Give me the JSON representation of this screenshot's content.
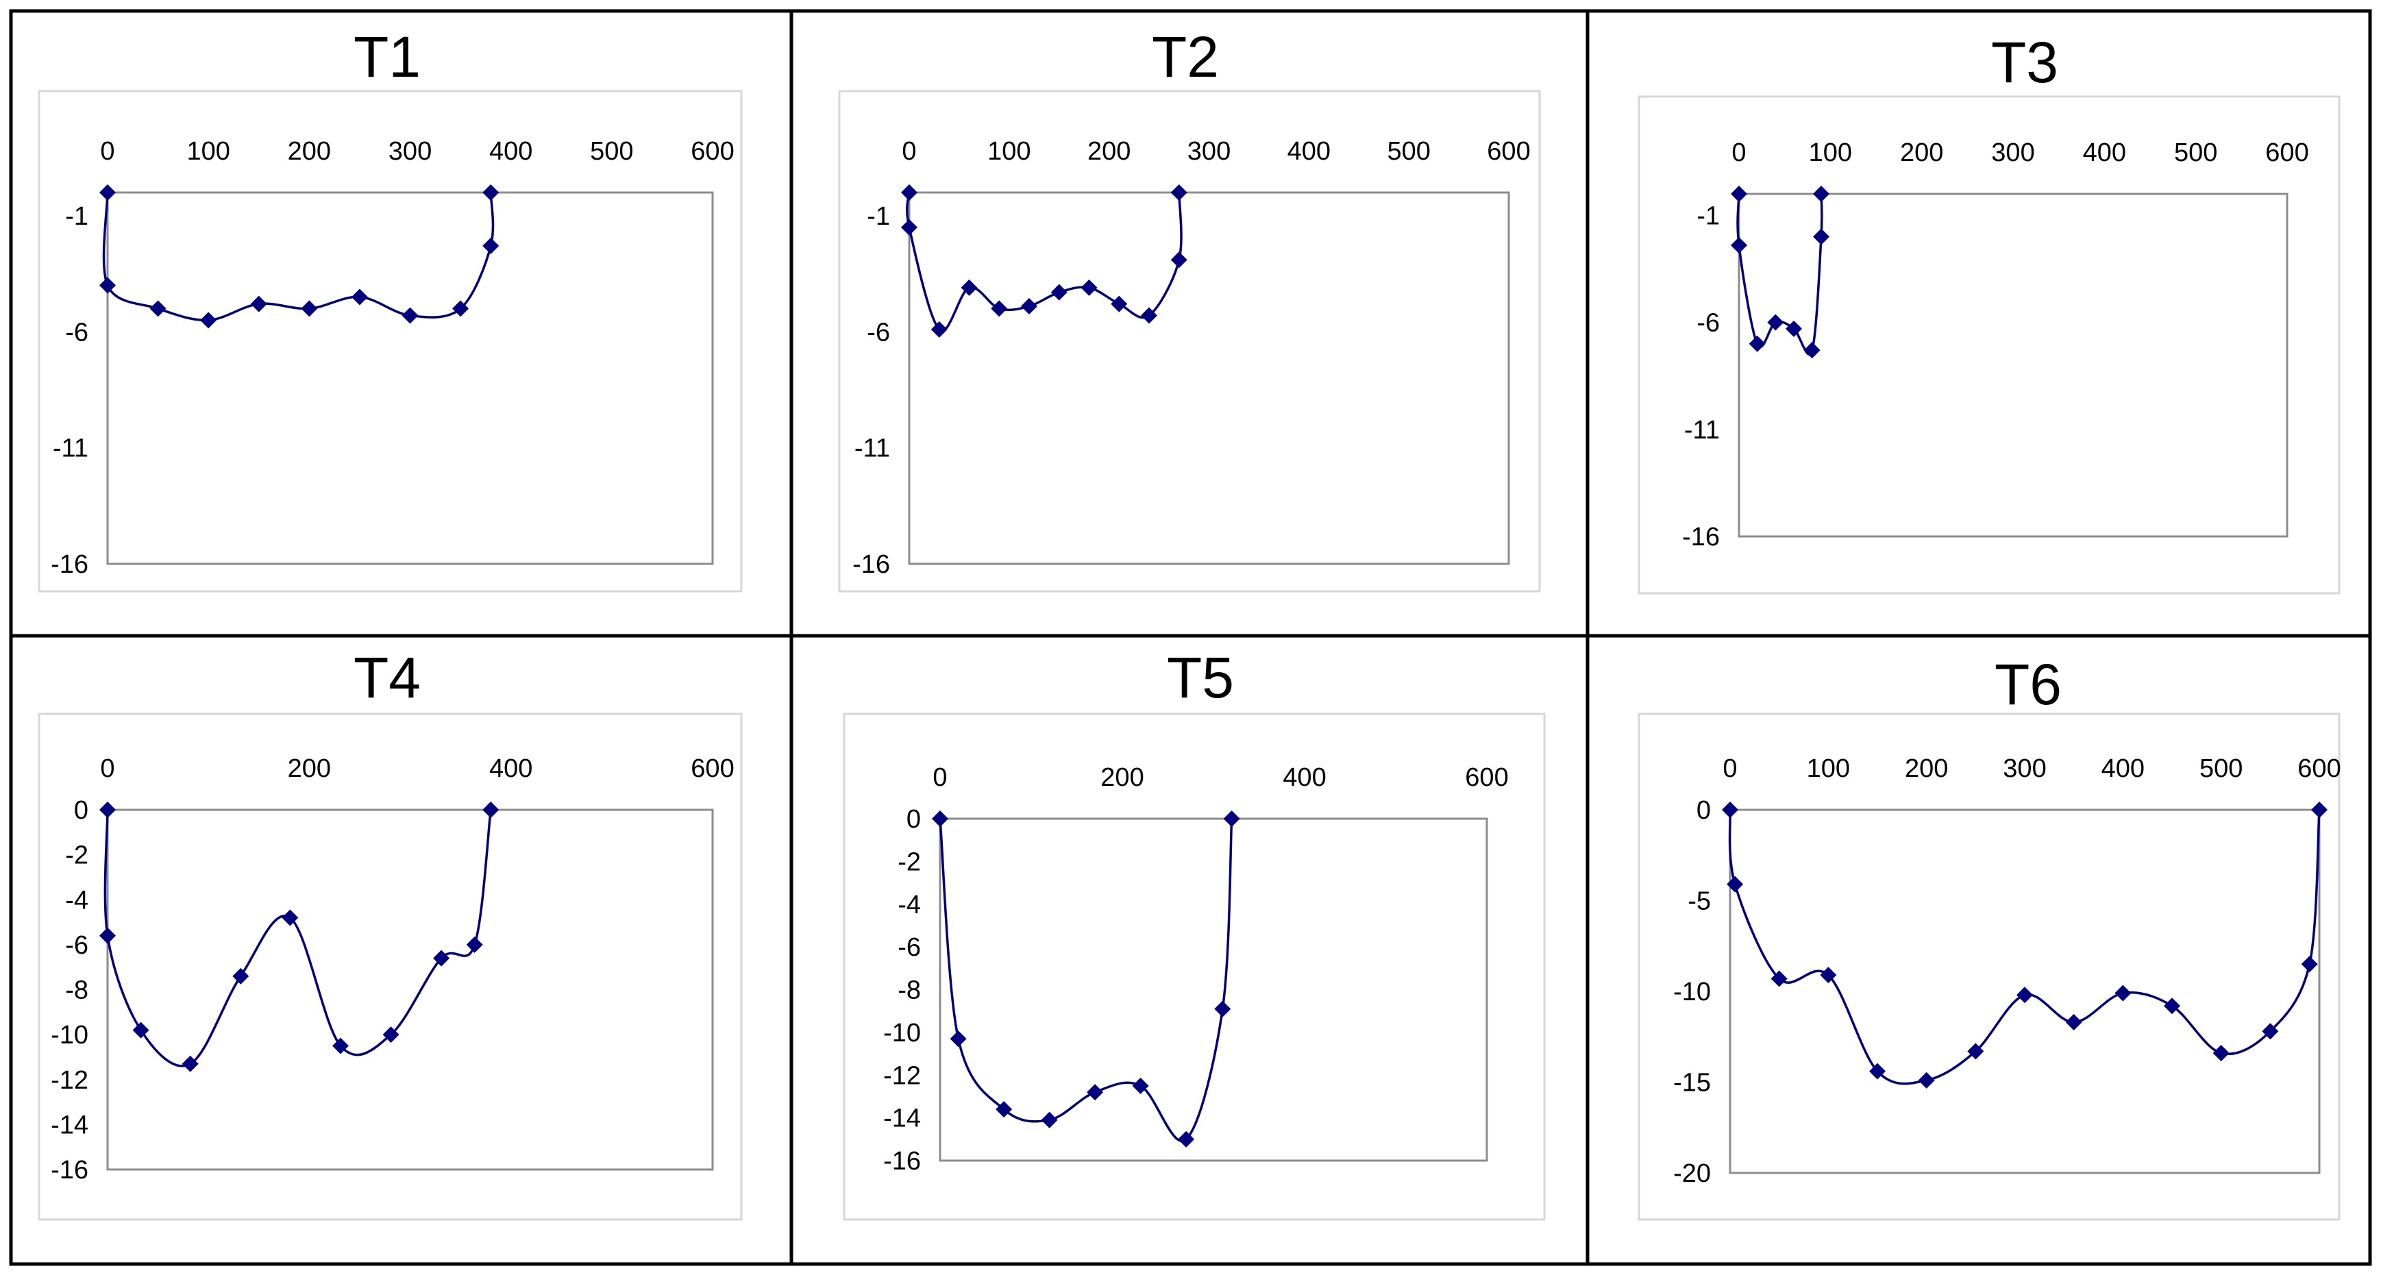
{
  "colors": {
    "series": "#000080",
    "plot_border": "#8c8c8c",
    "card_border": "#d7d7d7",
    "grid_lines": "#000000"
  },
  "chart_data": [
    {
      "type": "line",
      "title": "T1",
      "xlim": [
        0,
        600
      ],
      "ylim": [
        -16,
        0
      ],
      "xticks": [
        "0",
        "100",
        "200",
        "300",
        "400",
        "500",
        "600"
      ],
      "yticks": [
        "-1",
        "-6",
        "-11",
        "-16"
      ],
      "grid": false,
      "legend": "none",
      "smooth": true,
      "x_axis_position": "top",
      "series": [
        {
          "x": [
            0,
            0,
            50,
            100,
            150,
            200,
            250,
            300,
            350,
            380,
            380
          ],
          "y": [
            0,
            -4,
            -5,
            -5.5,
            -4.8,
            -5,
            -4.5,
            -5.3,
            -5,
            -2.3,
            0
          ]
        }
      ]
    },
    {
      "type": "line",
      "title": "T2",
      "xlim": [
        0,
        600
      ],
      "ylim": [
        -16,
        0
      ],
      "xticks": [
        "0",
        "100",
        "200",
        "300",
        "400",
        "500",
        "600"
      ],
      "yticks": [
        "-1",
        "-6",
        "-11",
        "-16"
      ],
      "grid": false,
      "legend": "none",
      "smooth": true,
      "x_axis_position": "top",
      "series": [
        {
          "x": [
            0,
            0,
            30,
            60,
            90,
            120,
            150,
            180,
            210,
            240,
            270,
            270
          ],
          "y": [
            0,
            -1.5,
            -5.9,
            -4.1,
            -5,
            -4.9,
            -4.3,
            -4.1,
            -4.8,
            -5.3,
            -2.9,
            0
          ]
        }
      ]
    },
    {
      "type": "line",
      "title": "T3",
      "xlim": [
        0,
        600
      ],
      "ylim": [
        -16,
        0
      ],
      "xticks": [
        "0",
        "100",
        "200",
        "300",
        "400",
        "500",
        "600"
      ],
      "yticks": [
        "-1",
        "-6",
        "-11",
        "-16"
      ],
      "grid": false,
      "legend": "none",
      "smooth": true,
      "x_axis_position": "top",
      "series": [
        {
          "x": [
            0,
            0,
            20,
            40,
            60,
            80,
            90,
            90
          ],
          "y": [
            0,
            -2.4,
            -7,
            -6,
            -6.3,
            -7.3,
            -2,
            0
          ]
        }
      ]
    },
    {
      "type": "line",
      "title": "T4",
      "xlim": [
        0,
        600
      ],
      "ylim": [
        -16,
        0
      ],
      "xticks": [
        "0",
        "200",
        "400",
        "600"
      ],
      "yticks": [
        "0",
        "-2",
        "-4",
        "-6",
        "-8",
        "-10",
        "-12",
        "-14",
        "-16"
      ],
      "grid": false,
      "legend": "none",
      "smooth": true,
      "x_axis_position": "top",
      "series": [
        {
          "x": [
            0,
            0,
            33,
            82,
            132,
            181,
            231,
            281,
            331,
            364,
            380
          ],
          "y": [
            0,
            -5.6,
            -9.8,
            -11.3,
            -7.4,
            -4.8,
            -10.5,
            -10,
            -6.6,
            -6,
            0
          ]
        }
      ]
    },
    {
      "type": "line",
      "title": "T5",
      "xlim": [
        0,
        600
      ],
      "ylim": [
        -16,
        0
      ],
      "xticks": [
        "0",
        "200",
        "400",
        "600"
      ],
      "yticks": [
        "0",
        "-2",
        "-4",
        "-6",
        "-8",
        "-10",
        "-12",
        "-14",
        "-16"
      ],
      "grid": false,
      "legend": "none",
      "smooth": true,
      "x_axis_position": "top",
      "series": [
        {
          "x": [
            0,
            20,
            70,
            120,
            170,
            220,
            270,
            310,
            320
          ],
          "y": [
            0,
            -10.3,
            -13.6,
            -14.1,
            -12.8,
            -12.5,
            -15,
            -8.9,
            0
          ]
        }
      ]
    },
    {
      "type": "line",
      "title": "T6",
      "xlim": [
        0,
        600
      ],
      "ylim": [
        -20,
        0
      ],
      "xticks": [
        "0",
        "100",
        "200",
        "300",
        "400",
        "500",
        "600"
      ],
      "yticks": [
        "0",
        "-5",
        "-10",
        "-15",
        "-20"
      ],
      "grid": false,
      "legend": "none",
      "smooth": true,
      "x_axis_position": "top",
      "series": [
        {
          "x": [
            0,
            5,
            50,
            100,
            150,
            200,
            250,
            300,
            350,
            400,
            450,
            500,
            550,
            590,
            600
          ],
          "y": [
            0,
            -4.1,
            -9.3,
            -9.1,
            -14.4,
            -14.9,
            -13.3,
            -10.2,
            -11.7,
            -10.1,
            -10.8,
            -13.4,
            -12.2,
            -8.5,
            0
          ]
        }
      ]
    }
  ]
}
